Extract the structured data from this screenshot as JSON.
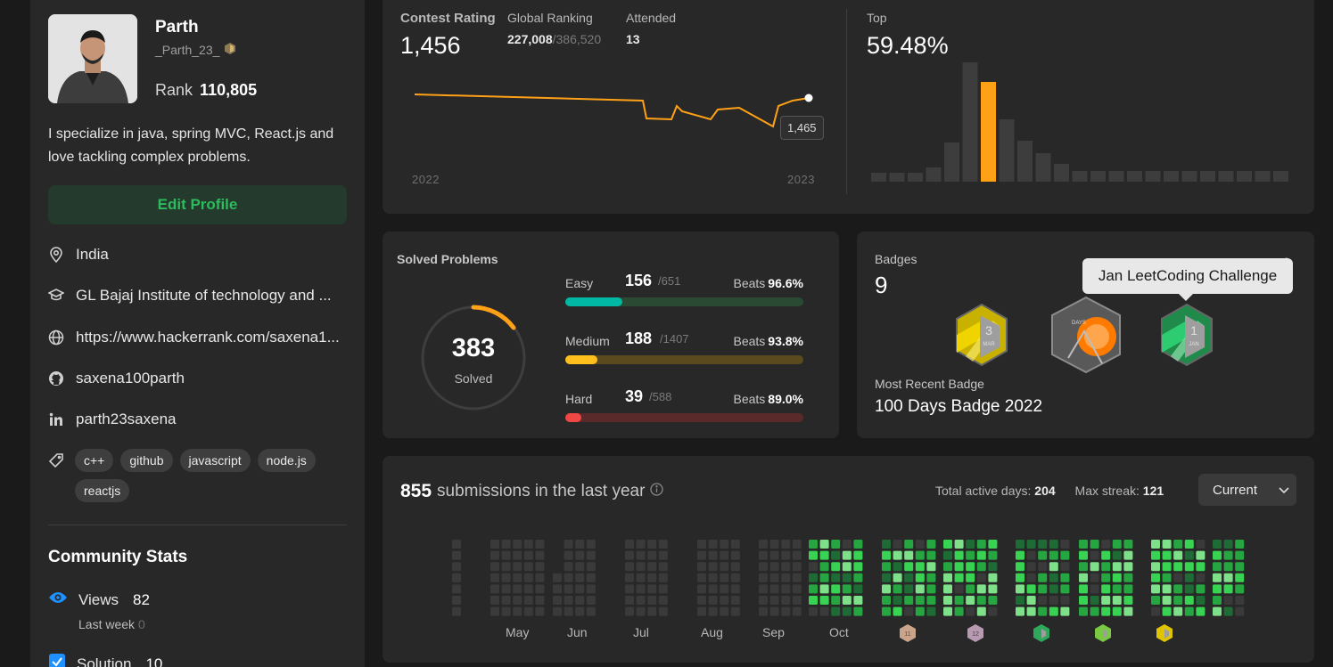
{
  "profile": {
    "name": "Parth",
    "username": "_Parth_23_",
    "rank_label": "Rank",
    "rank": "110,805",
    "bio": "I specialize in java, spring MVC, React.js and love tackling complex problems.",
    "edit_label": "Edit Profile",
    "location": "India",
    "school": "GL Bajaj Institute of technology and ...",
    "website": "https://www.hackerrank.com/saxena1...",
    "github": "saxena100parth",
    "linkedin": "parth23saxena",
    "tags": [
      "c++",
      "github",
      "javascript",
      "node.js",
      "reactjs"
    ]
  },
  "community": {
    "title": "Community Stats",
    "views_label": "Views",
    "views": "82",
    "last_week_label": "Last week",
    "last_week": "0",
    "solution_label": "Solution",
    "solution": "10"
  },
  "contest": {
    "rating_label": "Contest Rating",
    "rating": "1,456",
    "global_label": "Global Ranking",
    "global_rank": "227,008",
    "global_total": "/386,520",
    "attended_label": "Attended",
    "attended": "13",
    "top_label": "Top",
    "top": "59.48%",
    "tooltip": "1,465",
    "year_start": "2022",
    "year_end": "2023",
    "line_color": "#ffa116",
    "histogram_highlight_index": 6
  },
  "solved": {
    "title": "Solved Problems",
    "total": "383",
    "total_label": "Solved",
    "beats_label": "Beats",
    "easy": {
      "label": "Easy",
      "count": "156",
      "total": "/651",
      "beats": "96.6%",
      "fraction": 0.24,
      "color": "#00b8a3",
      "track": "#2a4a33"
    },
    "medium": {
      "label": "Medium",
      "count": "188",
      "total": "/1407",
      "beats": "93.8%",
      "fraction": 0.134,
      "color": "#ffc01e",
      "track": "#5a4a1e"
    },
    "hard": {
      "label": "Hard",
      "count": "39",
      "total": "/588",
      "beats": "89.0%",
      "fraction": 0.066,
      "color": "#ef4743",
      "track": "#5a2a2a"
    }
  },
  "badges": {
    "label": "Badges",
    "count": "9",
    "tooltip": "Jan LeetCoding Challenge",
    "recent_label": "Most Recent Badge",
    "recent": "100 Days Badge 2022",
    "icons": [
      "mar-challenge-badge-icon",
      "100-days-badge-icon",
      "jan-challenge-badge-icon"
    ]
  },
  "submissions": {
    "count": "855",
    "text": "submissions in the last year",
    "active_label": "Total active days:",
    "active": "204",
    "streak_label": "Max streak:",
    "streak": "121",
    "select": "Current",
    "months": [
      "May",
      "Jun",
      "Jul",
      "Aug",
      "Sep",
      "Oct"
    ],
    "empty_color": "#3a3a3a",
    "green_colors": [
      "#1f6b36",
      "#26a641",
      "#39d353",
      "#7ee089"
    ]
  }
}
